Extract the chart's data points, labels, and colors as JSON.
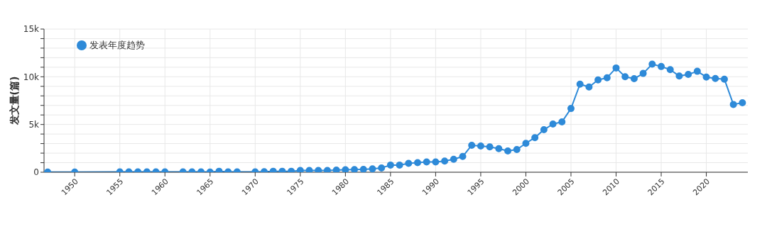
{
  "chart_data": {
    "type": "line",
    "ylabel": "发文量(篇)",
    "legend": "top left",
    "grid": true,
    "marker": "circle",
    "line_style": "solid",
    "xlim": [
      1946.6,
      2024.6
    ],
    "xticks": [
      1950,
      1955,
      1960,
      1965,
      1970,
      1975,
      1980,
      1985,
      1990,
      1995,
      2000,
      2005,
      2010,
      2015,
      2020
    ],
    "ylim": [
      0,
      15000
    ],
    "yticks": [
      0,
      {
        "value": 1000,
        "label": null
      },
      {
        "value": 2000,
        "label": null
      },
      {
        "value": 3000,
        "label": null
      },
      {
        "value": 4000,
        "label": null
      },
      {
        "value": 5000,
        "label": "5k"
      },
      {
        "value": 6000,
        "label": null
      },
      {
        "value": 7000,
        "label": null
      },
      {
        "value": 8000,
        "label": null
      },
      {
        "value": 9000,
        "label": null
      },
      {
        "value": 10000,
        "label": "10k"
      },
      {
        "value": 11000,
        "label": null
      },
      {
        "value": 12000,
        "label": null
      },
      {
        "value": 13000,
        "label": null
      },
      {
        "value": 14000,
        "label": null
      },
      {
        "value": 15000,
        "label": "15k"
      }
    ],
    "x": [
      1947,
      1950,
      1955,
      1956,
      1957,
      1958,
      1959,
      1960,
      1962,
      1963,
      1964,
      1965,
      1966,
      1967,
      1968,
      1970,
      1971,
      1972,
      1973,
      1974,
      1975,
      1976,
      1977,
      1978,
      1979,
      1980,
      1981,
      1982,
      1983,
      1984,
      1985,
      1986,
      1987,
      1988,
      1989,
      1990,
      1991,
      1992,
      1993,
      1994,
      1995,
      1996,
      1997,
      1998,
      1999,
      2000,
      2001,
      2002,
      2003,
      2004,
      2005,
      2006,
      2007,
      2008,
      2009,
      2010,
      2011,
      2012,
      2013,
      2014,
      2015,
      2016,
      2017,
      2018,
      2019,
      2020,
      2021,
      2022,
      2023,
      2024
    ],
    "series": [
      {
        "name": "发表年度趋势",
        "color": "#2e8ad8",
        "values": [
          20,
          20,
          30,
          40,
          30,
          30,
          30,
          30,
          30,
          30,
          30,
          20,
          100,
          30,
          30,
          30,
          50,
          100,
          100,
          100,
          180,
          180,
          180,
          180,
          220,
          260,
          270,
          300,
          350,
          450,
          750,
          750,
          925,
          1000,
          1075,
          1075,
          1175,
          1350,
          1650,
          2825,
          2750,
          2650,
          2475,
          2225,
          2375,
          3025,
          3625,
          4450,
          5050,
          5275,
          6675,
          9225,
          8925,
          9675,
          9900,
          10925,
          10000,
          9800,
          10350,
          11325,
          11075,
          10750,
          10075,
          10250,
          10575,
          9975,
          9825,
          9750,
          7100,
          7275
        ]
      }
    ]
  }
}
